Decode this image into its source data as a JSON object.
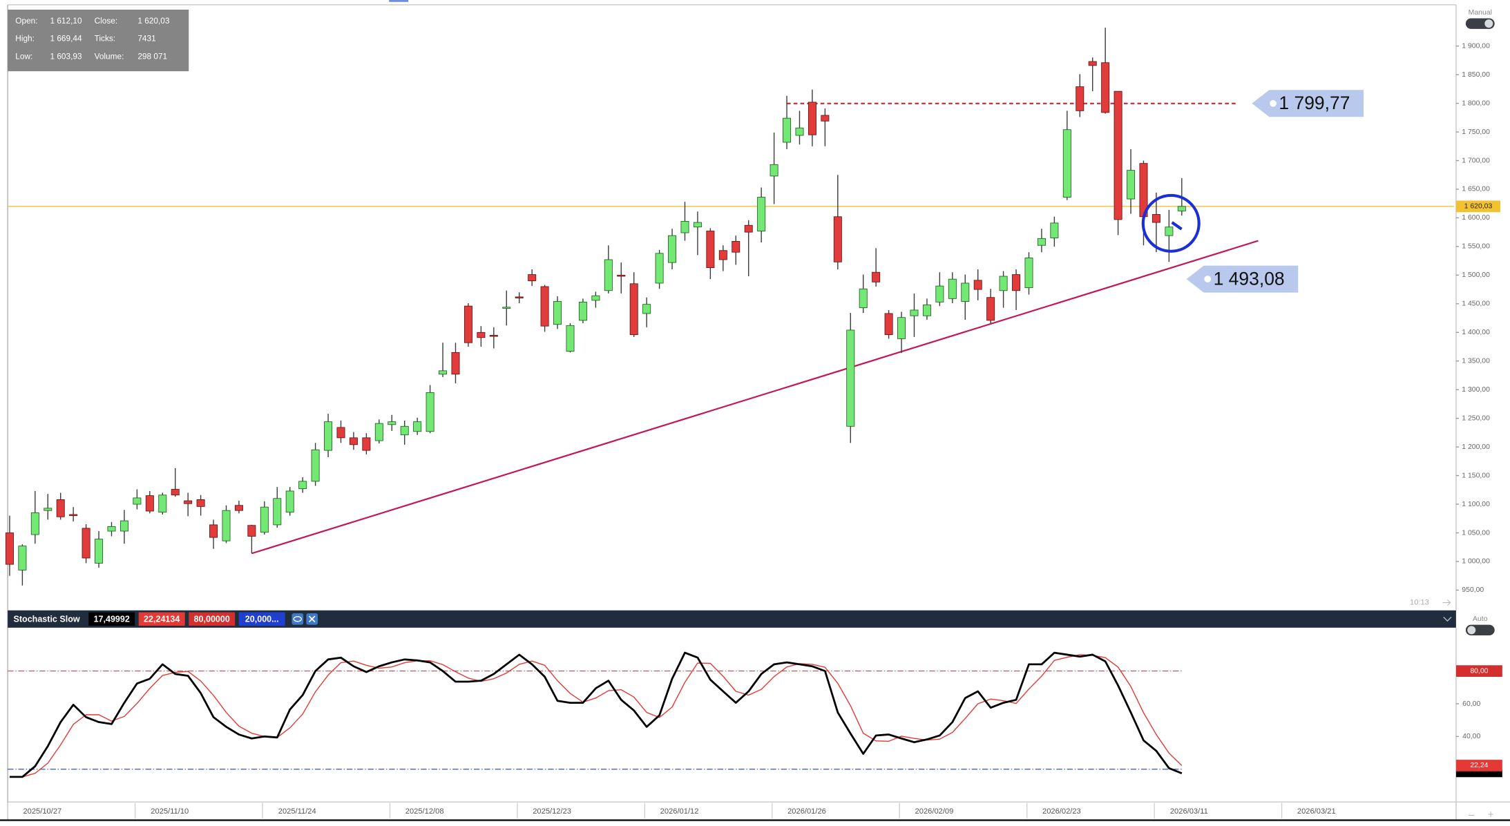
{
  "chart_data": [
    {
      "type": "candlestick",
      "info": [
        {
          "label": "Open:",
          "value": "1 612,10"
        },
        {
          "label": "Close:",
          "value": "1 620,03"
        },
        {
          "label": "High:",
          "value": "1 669,44"
        },
        {
          "label": "Ticks:",
          "value": "7431"
        },
        {
          "label": "Low:",
          "value": "1 603,93"
        },
        {
          "label": "Volume:",
          "value": "298 071"
        }
      ],
      "categories": [
        "2025/10/27",
        null,
        null,
        null,
        null,
        null,
        null,
        null,
        null,
        null,
        "2025/11/10",
        null,
        null,
        null,
        null,
        null,
        null,
        null,
        null,
        null,
        "2025/11/24",
        null,
        null,
        null,
        null,
        null,
        null,
        null,
        null,
        null,
        "2025/12/08",
        null,
        null,
        null,
        null,
        null,
        null,
        null,
        null,
        null,
        "2025/12/23",
        null,
        null,
        null,
        null,
        null,
        null,
        null,
        null,
        null,
        "2026/01/12",
        null,
        null,
        null,
        null,
        null,
        null,
        null,
        null,
        null,
        "2026/01/26",
        null,
        null,
        null,
        null,
        null,
        null,
        null,
        null,
        null,
        "2026/02/09",
        null,
        null,
        null,
        null,
        null,
        null,
        null,
        null,
        null,
        "2026/02/23",
        null,
        null,
        null,
        null,
        null,
        null,
        null,
        null,
        null,
        "2026/03/11",
        null,
        null,
        null,
        null,
        null,
        null,
        null,
        null,
        null,
        "2026/03/21"
      ],
      "open": [
        1050,
        985,
        1047,
        1089,
        1108,
        1082,
        1058,
        997,
        1053,
        1053,
        1100,
        1115,
        1086,
        1126,
        1106,
        1108,
        1064,
        1036,
        1098,
        1063,
        1051,
        1064,
        1086,
        1127,
        1140,
        1194,
        1234,
        1216,
        1216,
        1211,
        1239,
        1221,
        1227,
        1227,
        1327,
        1365,
        1446,
        1400,
        1395,
        1442,
        1462,
        1501,
        1480,
        1414,
        1367,
        1421,
        1456,
        1473,
        1500,
        1485,
        1433,
        1486,
        1522,
        1574,
        1584,
        1577,
        1543,
        1559,
        1587,
        1577,
        1673,
        1732,
        1744,
        1802,
        1779,
        1602,
        1236,
        1443,
        1505,
        1433,
        1389,
        1429,
        1429,
        1453,
        1459,
        1454,
        1491,
        1461,
        1473,
        1501,
        1478,
        1552,
        1565,
        1636,
        1829,
        1873,
        1871,
        1821,
        1633,
        1695,
        1606,
        1569,
        1612.1,
        null,
        null,
        null,
        null,
        null,
        null,
        null,
        null
      ],
      "high": [
        1080,
        1030,
        1123,
        1118,
        1120,
        1095,
        1065,
        1053,
        1069,
        1090,
        1126,
        1123,
        1120,
        1163,
        1120,
        1116,
        1073,
        1098,
        1106,
        1064,
        1105,
        1130,
        1130,
        1147,
        1207,
        1258,
        1246,
        1226,
        1224,
        1248,
        1256,
        1246,
        1251,
        1308,
        1382,
        1382,
        1451,
        1411,
        1409,
        1473,
        1470,
        1510,
        1483,
        1463,
        1416,
        1459,
        1471,
        1552,
        1522,
        1505,
        1461,
        1544,
        1581,
        1628,
        1611,
        1582,
        1552,
        1569,
        1596,
        1653,
        1749,
        1813,
        1787,
        1824,
        1791,
        1675,
        1434,
        1501,
        1547,
        1439,
        1436,
        1468,
        1459,
        1505,
        1505,
        1501,
        1510,
        1476,
        1507,
        1510,
        1540,
        1581,
        1602,
        1787,
        1851,
        1880,
        1932,
        1821,
        1720,
        1700,
        1644,
        1614,
        1669.44,
        null,
        null,
        null,
        null,
        null,
        null,
        null,
        null
      ],
      "low": [
        975,
        958,
        1031,
        1073,
        1073,
        1070,
        997,
        989,
        1044,
        1031,
        1091,
        1084,
        1082,
        1113,
        1079,
        1080,
        1022,
        1032,
        1084,
        1014,
        1047,
        1059,
        1080,
        1120,
        1132,
        1182,
        1207,
        1195,
        1187,
        1206,
        1228,
        1204,
        1221,
        1224,
        1322,
        1311,
        1375,
        1375,
        1372,
        1412,
        1451,
        1481,
        1401,
        1406,
        1365,
        1416,
        1443,
        1468,
        1468,
        1392,
        1409,
        1476,
        1510,
        1560,
        1535,
        1493,
        1507,
        1518,
        1498,
        1557,
        1624,
        1720,
        1728,
        1725,
        1725,
        1510,
        1207,
        1434,
        1480,
        1389,
        1364,
        1392,
        1422,
        1446,
        1451,
        1422,
        1456,
        1416,
        1443,
        1439,
        1466,
        1540,
        1550,
        1631,
        1776,
        1821,
        1782,
        1570,
        1607,
        1552,
        1540,
        1523,
        1603.93,
        null,
        null,
        null,
        null,
        null,
        null,
        null,
        null
      ],
      "close": [
        995,
        1027,
        1085,
        1093,
        1078,
        1080,
        1006,
        1039,
        1061,
        1071,
        1111,
        1088,
        1116,
        1116,
        1101,
        1096,
        1042,
        1089,
        1089,
        1044,
        1095,
        1110,
        1123,
        1140,
        1195,
        1244,
        1216,
        1204,
        1194,
        1241,
        1244,
        1236,
        1244,
        1295,
        1333,
        1327,
        1382,
        1391,
        1394,
        1444,
        1460,
        1490,
        1411,
        1454,
        1412,
        1453,
        1464,
        1527,
        1498,
        1396,
        1449,
        1538,
        1569,
        1594,
        1592,
        1513,
        1527,
        1540,
        1575,
        1636,
        1693,
        1774,
        1757,
        1745,
        1769,
        1523,
        1404,
        1476,
        1488,
        1396,
        1426,
        1439,
        1448,
        1481,
        1493,
        1486,
        1475,
        1421,
        1498,
        1473,
        1530,
        1564,
        1591,
        1754,
        1787,
        1866,
        1784,
        1597,
        1683,
        1602,
        1592,
        1584,
        1620.03,
        null,
        null,
        null,
        null,
        null,
        null,
        null,
        null
      ],
      "up_color": "#74e874",
      "down_color": "#e23b3b",
      "ylim": [
        918,
        1972
      ],
      "yticks": [
        {
          "value": 950,
          "label": "950,00"
        },
        {
          "value": 1000,
          "label": "1 000,00"
        },
        {
          "value": 1050,
          "label": "1 050,00"
        },
        {
          "value": 1100,
          "label": "1 100,00"
        },
        {
          "value": 1150,
          "label": "1 150,00"
        },
        {
          "value": 1200,
          "label": "1 200,00"
        },
        {
          "value": 1250,
          "label": "1 250,00"
        },
        {
          "value": 1300,
          "label": "1 300,00"
        },
        {
          "value": 1350,
          "label": "1 350,00"
        },
        {
          "value": 1400,
          "label": "1 400,00"
        },
        {
          "value": 1450,
          "label": "1 450,00"
        },
        {
          "value": 1500,
          "label": "1 500,00"
        },
        {
          "value": 1550,
          "label": "1 550,00"
        },
        {
          "value": 1600,
          "label": "1 600,00"
        },
        {
          "value": 1650,
          "label": "1 650,00"
        },
        {
          "value": 1700,
          "label": "1 700,00"
        },
        {
          "value": 1750,
          "label": "1 750,00"
        },
        {
          "value": 1800,
          "label": "1 800,00"
        },
        {
          "value": 1850,
          "label": "1 850,00"
        },
        {
          "value": 1900,
          "label": "1 900,00"
        }
      ],
      "last_price": {
        "value": 1620.03,
        "label": "1 620,03",
        "color": "#f2c230"
      },
      "level": {
        "value": 1799.77,
        "label": "1 799,77",
        "x": [
          61,
          96.4
        ],
        "color": "#c62838"
      },
      "trendline": {
        "x": [
          19,
          98
        ],
        "values": [
          1014,
          1560
        ],
        "color": "#c2185b",
        "callout": {
          "value": 1493.08,
          "label": "1 493,08"
        }
      },
      "time_label": "10:13",
      "mode": "Manual"
    },
    {
      "type": "line",
      "title": "Stochastic Slow",
      "ylim": [
        0,
        106.5
      ],
      "yticks": [
        {
          "value": 40,
          "label": "40,00"
        },
        {
          "value": 60,
          "label": "60,00"
        }
      ],
      "series": [
        {
          "label": "17,49992",
          "color": "#000000",
          "values": [
            15.3,
            15.3,
            21.8,
            34.1,
            48.8,
            59.4,
            51.8,
            48.8,
            47.6,
            60.6,
            72.4,
            75.3,
            84.1,
            78.2,
            77.1,
            66.5,
            51.8,
            45.9,
            41.2,
            38.8,
            40,
            39.4,
            56.5,
            65.3,
            80,
            87.1,
            88.2,
            82.9,
            79.4,
            82.9,
            85.3,
            87.1,
            86.5,
            85.3,
            80,
            73.5,
            73.5,
            74.1,
            78.2,
            84.1,
            90,
            84.1,
            76.5,
            61.8,
            60.6,
            60.6,
            69.4,
            74.1,
            62.4,
            55.9,
            45.9,
            52.9,
            75.3,
            91.2,
            88.2,
            74.7,
            67.6,
            60.6,
            67.6,
            78.2,
            84.1,
            85.3,
            84.1,
            82.9,
            80,
            54.7,
            41.8,
            29.4,
            40.6,
            41.2,
            38.8,
            36.5,
            38.2,
            40.6,
            48.8,
            63.5,
            67.6,
            57.6,
            60.6,
            62.4,
            84.1,
            84.1,
            91.2,
            90,
            88.8,
            90,
            85.9,
            71.2,
            54.7,
            37.6,
            31.2,
            20.6,
            17.49992,
            null,
            null,
            null,
            null,
            null,
            null,
            null,
            null
          ]
        },
        {
          "label": "22,24134",
          "axis_label": "22,24",
          "color": "#e53935",
          "values": [
            15.3,
            15.3,
            17.5,
            23.7,
            34.9,
            47.4,
            53.3,
            53.3,
            49.4,
            52.3,
            60.2,
            69.4,
            77.3,
            79.2,
            79.8,
            73.9,
            65.1,
            54.7,
            46.3,
            42,
            40,
            39.4,
            45.3,
            53.7,
            67.3,
            77.5,
            85.1,
            86.1,
            83.5,
            81.7,
            82.5,
            85.1,
            86.3,
            86.3,
            83.9,
            79.6,
            75.7,
            73.7,
            75.3,
            78.8,
            84.1,
            86.1,
            83.5,
            74.1,
            66.3,
            61,
            63.5,
            68,
            68.6,
            64.1,
            54.7,
            51.6,
            58,
            73.1,
            84.9,
            84.7,
            76.8,
            67.6,
            65.3,
            68.8,
            76.6,
            82.5,
            84.5,
            84.1,
            82.3,
            72.5,
            58.8,
            42,
            37.3,
            37.1,
            40.2,
            38.8,
            37.8,
            38.4,
            42.5,
            51,
            60,
            62.9,
            61.9,
            60.2,
            69,
            76.9,
            86.5,
            88.4,
            90,
            89.6,
            88.2,
            82.4,
            70.6,
            54.5,
            41.2,
            29.8,
            22.24134,
            null,
            null,
            null,
            null,
            null,
            null,
            null,
            null
          ]
        }
      ],
      "levels": [
        {
          "value": 80,
          "label": "80,00000",
          "axis_label": "80,00",
          "color": "#d32f2f"
        },
        {
          "value": 20,
          "label": "20,000...",
          "color": "#1e3fd0"
        }
      ],
      "mode": "Auto"
    }
  ],
  "zoom_controls": [
    "–",
    "+"
  ]
}
